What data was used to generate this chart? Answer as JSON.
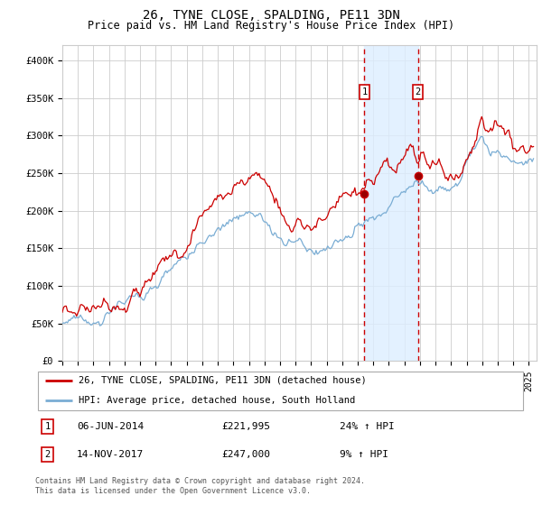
{
  "title": "26, TYNE CLOSE, SPALDING, PE11 3DN",
  "subtitle": "Price paid vs. HM Land Registry's House Price Index (HPI)",
  "ylabel_ticks": [
    "£0",
    "£50K",
    "£100K",
    "£150K",
    "£200K",
    "£250K",
    "£300K",
    "£350K",
    "£400K"
  ],
  "ylim": [
    0,
    420000
  ],
  "xlim_start": 1995.0,
  "xlim_end": 2025.5,
  "transaction1_date": 2014.43,
  "transaction1_price": 221995,
  "transaction2_date": 2017.87,
  "transaction2_price": 247000,
  "transaction1_text": "06-JUN-2014",
  "transaction1_price_text": "£221,995",
  "transaction1_hpi_text": "24% ↑ HPI",
  "transaction2_text": "14-NOV-2017",
  "transaction2_price_text": "£247,000",
  "transaction2_hpi_text": "9% ↑ HPI",
  "legend_line1": "26, TYNE CLOSE, SPALDING, PE11 3DN (detached house)",
  "legend_line2": "HPI: Average price, detached house, South Holland",
  "footer": "Contains HM Land Registry data © Crown copyright and database right 2024.\nThis data is licensed under the Open Government Licence v3.0.",
  "line_color_red": "#cc0000",
  "line_color_blue": "#7aadd4",
  "shade_color": "#ddeeff",
  "dashed_color": "#cc0000",
  "box_color": "#cc0000",
  "background_color": "#ffffff",
  "grid_color": "#cccccc"
}
